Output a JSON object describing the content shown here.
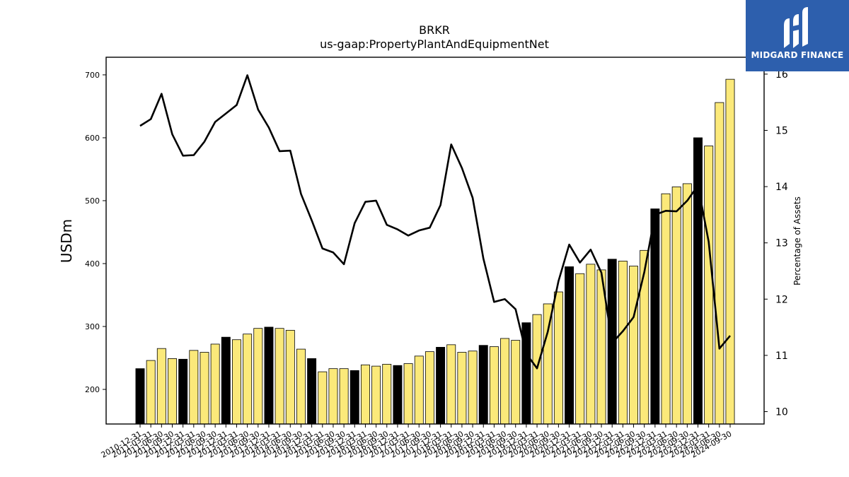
{
  "chart_data": {
    "type": "bar",
    "title": "BRKR",
    "subtitle": "us-gaap:PropertyPlantAndEquipmentNet",
    "ylabel": "USDm",
    "ylabel_right": "Percentage of Assets",
    "ylim": [
      145,
      728
    ],
    "y2lim": [
      9.78,
      16.3
    ],
    "yticks": [
      200,
      300,
      400,
      500,
      600,
      700
    ],
    "y2ticks": [
      10,
      11,
      12,
      13,
      14,
      15,
      16
    ],
    "grid": false,
    "categories": [
      "2010-12-31",
      "2011-03-31",
      "2011-06-30",
      "2011-09-30",
      "2011-12-31",
      "2012-03-31",
      "2012-06-30",
      "2012-09-30",
      "2012-12-31",
      "2013-03-31",
      "2013-06-30",
      "2013-09-30",
      "2013-12-31",
      "2014-03-31",
      "2014-06-30",
      "2014-09-30",
      "2014-12-31",
      "2015-03-31",
      "2015-06-30",
      "2015-09-30",
      "2015-12-31",
      "2016-03-31",
      "2016-06-30",
      "2016-09-30",
      "2016-12-31",
      "2017-03-31",
      "2017-06-30",
      "2017-09-30",
      "2017-12-31",
      "2018-03-31",
      "2018-06-30",
      "2018-09-30",
      "2018-12-31",
      "2019-03-31",
      "2019-06-30",
      "2019-09-30",
      "2019-12-31",
      "2020-03-31",
      "2020-06-30",
      "2020-09-30",
      "2020-12-31",
      "2021-03-31",
      "2021-06-30",
      "2021-09-30",
      "2021-12-31",
      "2022-03-31",
      "2022-06-30",
      "2022-09-30",
      "2022-12-31",
      "2023-03-31",
      "2023-06-30",
      "2023-09-30",
      "2023-12-31",
      "2024-03-31",
      "2024-06-30",
      "2024-09-30"
    ],
    "values": [
      233,
      246,
      265,
      249,
      248,
      262,
      259,
      272,
      283,
      279,
      288,
      297,
      299,
      297,
      294,
      264,
      249,
      228,
      233,
      233,
      230,
      239,
      237,
      240,
      238,
      241,
      253,
      260,
      267,
      271,
      259,
      261,
      270,
      268,
      281,
      278,
      306,
      319,
      336,
      355,
      395,
      384,
      399,
      390,
      407,
      404,
      396,
      421,
      487,
      511,
      522,
      527,
      600,
      587,
      656,
      693
    ],
    "year_end_color": "#000000",
    "quarter_color": "#fbe97a",
    "series": [
      {
        "name": "Percentage of Assets",
        "axis": "right",
        "color": "#000000",
        "values": [
          15.08,
          15.2,
          15.65,
          14.93,
          14.55,
          14.56,
          14.8,
          15.15,
          15.3,
          15.45,
          15.98,
          15.37,
          15.05,
          14.63,
          14.64,
          13.87,
          13.4,
          12.9,
          12.83,
          12.62,
          13.35,
          13.73,
          13.75,
          13.32,
          13.24,
          13.13,
          13.22,
          13.27,
          13.67,
          14.75,
          14.33,
          13.8,
          12.72,
          11.95,
          12.0,
          11.82,
          11.03,
          10.77,
          11.42,
          12.32,
          12.97,
          12.65,
          12.88,
          12.47,
          11.22,
          11.43,
          11.68,
          12.48,
          13.5,
          13.57,
          13.56,
          13.75,
          14.02,
          13.02,
          11.12,
          11.35
        ]
      }
    ]
  },
  "logo": {
    "text": "MIDGARD FINANCE"
  }
}
